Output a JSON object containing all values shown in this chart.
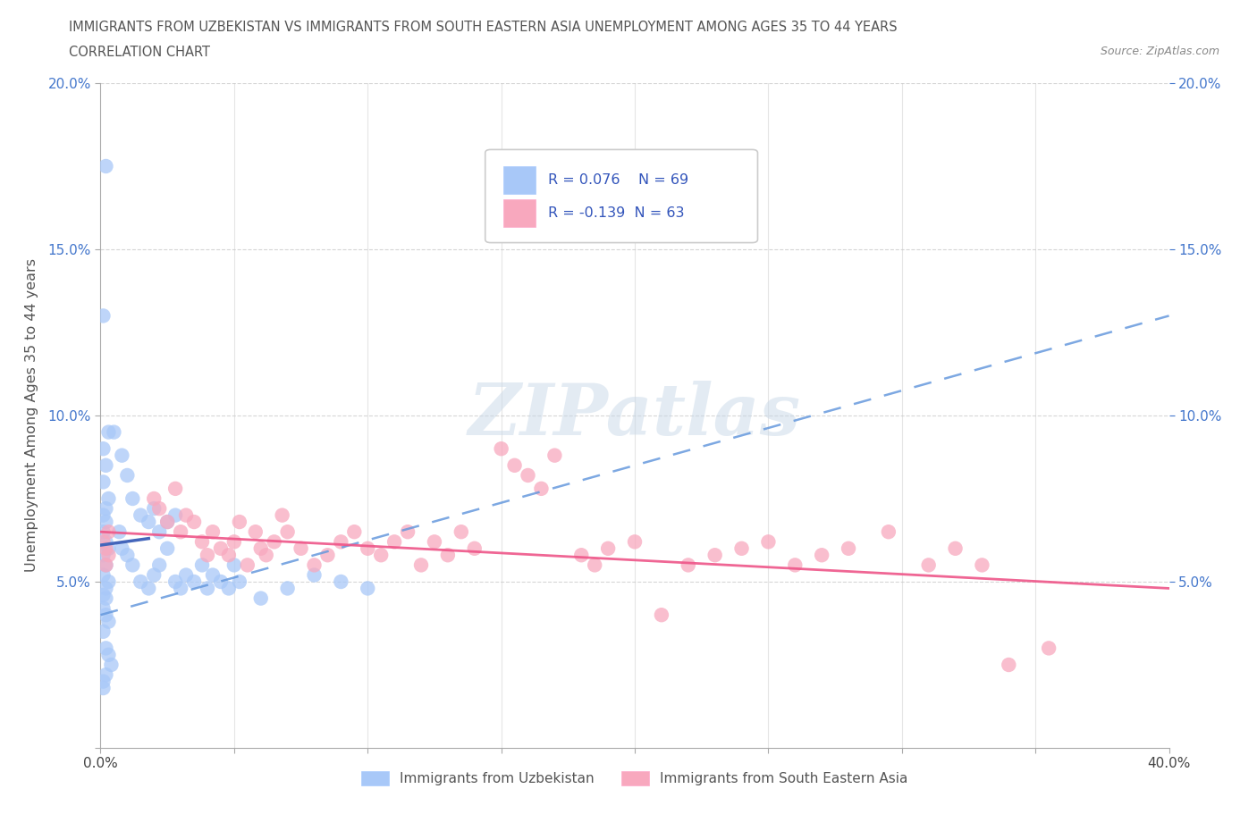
{
  "title_line1": "IMMIGRANTS FROM UZBEKISTAN VS IMMIGRANTS FROM SOUTH EASTERN ASIA UNEMPLOYMENT AMONG AGES 35 TO 44 YEARS",
  "title_line2": "CORRELATION CHART",
  "source_text": "Source: ZipAtlas.com",
  "ylabel": "Unemployment Among Ages 35 to 44 years",
  "legend_label1": "Immigrants from Uzbekistan",
  "legend_label2": "Immigrants from South Eastern Asia",
  "r1": 0.076,
  "n1": 69,
  "r2": -0.139,
  "n2": 63,
  "color1": "#a8c8f8",
  "color2": "#f8a8be",
  "trendline_color1": "#6699dd",
  "trendline_color2": "#ee5588",
  "solid_line_color": "#4466bb",
  "xlim": [
    0.0,
    0.4
  ],
  "ylim": [
    0.0,
    0.2
  ],
  "background_color": "#ffffff",
  "grid_color": "#cccccc",
  "grid_style": "--",
  "tick_color": "#4477cc",
  "title_color": "#555555",
  "watermark_color": "#c8d8e8",
  "watermark_alpha": 0.5
}
